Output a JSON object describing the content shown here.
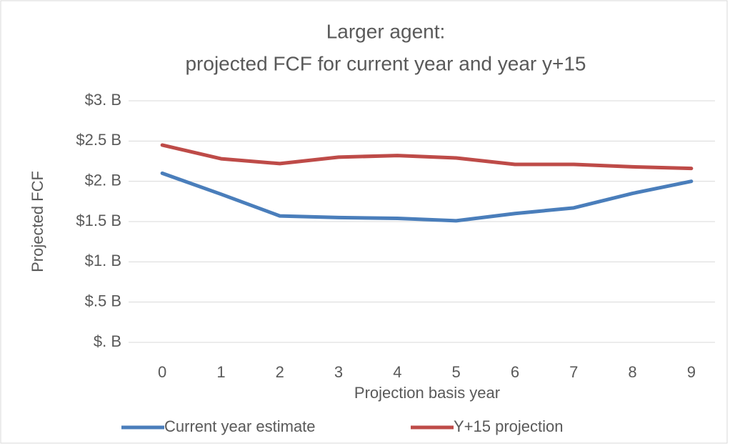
{
  "chart_data": {
    "type": "line",
    "title": [
      "Larger agent:",
      "projected FCF for current year and year y+15"
    ],
    "x_label": "Projection basis year",
    "y_label": "Projected FCF",
    "categories": [
      "0",
      "1",
      "2",
      "3",
      "4",
      "5",
      "6",
      "7",
      "8",
      "9"
    ],
    "series": [
      {
        "name": "Current year estimate",
        "color": "#4a7ebb",
        "values": [
          2.1,
          1.84,
          1.57,
          1.55,
          1.54,
          1.51,
          1.6,
          1.67,
          1.85,
          2.0
        ]
      },
      {
        "name": "Y+15 projection",
        "color": "#be4b48",
        "values": [
          2.45,
          2.28,
          2.22,
          2.3,
          2.32,
          2.29,
          2.21,
          2.21,
          2.18,
          2.16
        ]
      }
    ],
    "ylim": [
      0,
      3
    ],
    "yticks": [
      {
        "value": 0,
        "label": "$. B"
      },
      {
        "value": 0.5,
        "label": "$.5 B"
      },
      {
        "value": 1,
        "label": "$1. B"
      },
      {
        "value": 1.5,
        "label": "$1.5 B"
      },
      {
        "value": 2,
        "label": "$2. B"
      },
      {
        "value": 2.5,
        "label": "$2.5 B"
      },
      {
        "value": 3,
        "label": "$3. B"
      }
    ],
    "grid": true,
    "legend": "bottom"
  }
}
